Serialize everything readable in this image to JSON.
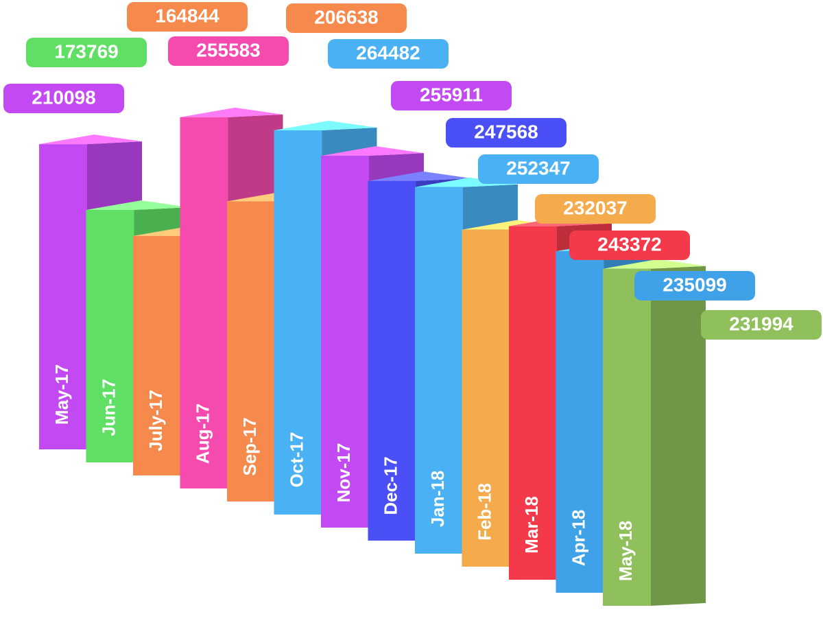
{
  "chart_data": {
    "type": "bar",
    "categories": [
      "May-17",
      "Jun-17",
      "July-17",
      "Aug-17",
      "Sep-17",
      "Oct-17",
      "Nov-17",
      "Dec-17",
      "Jan-18",
      "Feb-18",
      "Mar-18",
      "Apr-18",
      "May-18"
    ],
    "values": [
      210098,
      173769,
      164844,
      255583,
      206638,
      264482,
      255911,
      247568,
      252347,
      232037,
      243372,
      235099,
      231994
    ],
    "colors": [
      "#c349f2",
      "#5fe065",
      "#f58a4c",
      "#f54bae",
      "#f58a4c",
      "#4ab1f5",
      "#c349f2",
      "#4a50f5",
      "#4ab1f5",
      "#f5aa4c",
      "#f43a4a",
      "#3fa1e8",
      "#90c05b"
    ]
  }
}
